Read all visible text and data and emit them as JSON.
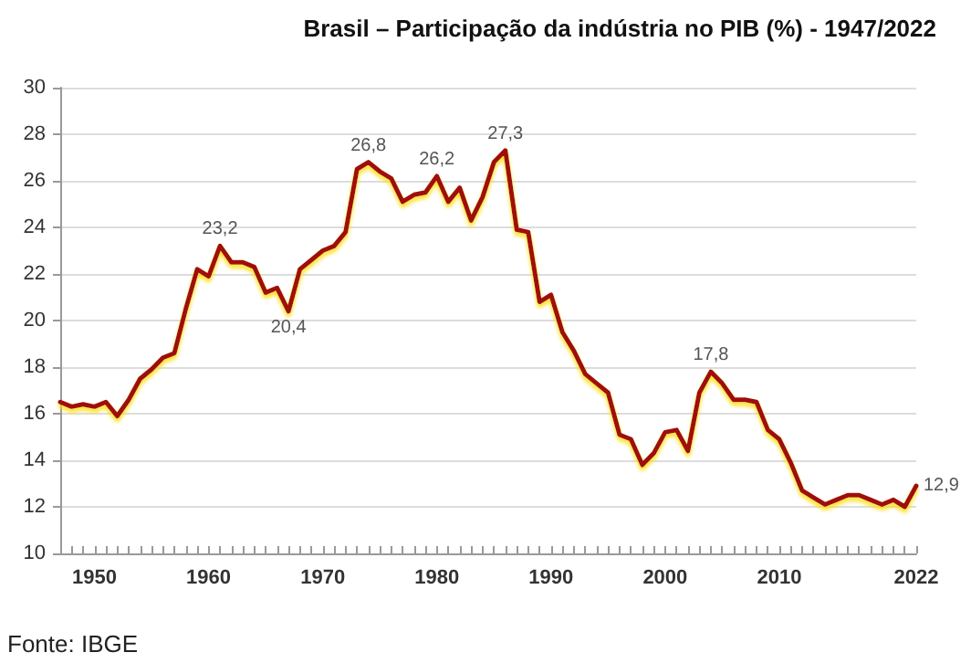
{
  "chart_data": {
    "type": "line",
    "title": "Brasil – Participação da indústria no PIB (%) - 1947/2022",
    "x": [
      1947,
      1948,
      1949,
      1950,
      1951,
      1952,
      1953,
      1954,
      1955,
      1956,
      1957,
      1958,
      1959,
      1960,
      1961,
      1962,
      1963,
      1964,
      1965,
      1966,
      1967,
      1968,
      1969,
      1970,
      1971,
      1972,
      1973,
      1974,
      1975,
      1976,
      1977,
      1978,
      1979,
      1980,
      1981,
      1982,
      1983,
      1984,
      1985,
      1986,
      1987,
      1988,
      1989,
      1990,
      1991,
      1992,
      1993,
      1994,
      1995,
      1996,
      1997,
      1998,
      1999,
      2000,
      2001,
      2002,
      2003,
      2004,
      2005,
      2006,
      2007,
      2008,
      2009,
      2010,
      2011,
      2012,
      2013,
      2014,
      2015,
      2016,
      2017,
      2018,
      2019,
      2020,
      2021,
      2022
    ],
    "series": [
      {
        "color": "#a01008",
        "values": [
          16.5,
          16.3,
          16.4,
          16.3,
          16.5,
          15.9,
          16.6,
          17.5,
          17.9,
          18.4,
          18.6,
          20.5,
          22.2,
          21.9,
          23.2,
          22.5,
          22.5,
          22.3,
          21.2,
          21.4,
          20.4,
          22.2,
          22.6,
          23.0,
          23.2,
          23.8,
          26.5,
          26.8,
          26.4,
          26.1,
          25.1,
          25.4,
          25.5,
          26.2,
          25.1,
          25.7,
          24.3,
          25.3,
          26.8,
          27.3,
          23.9,
          23.8,
          20.8,
          21.1,
          19.5,
          18.7,
          17.7,
          17.3,
          16.9,
          15.1,
          14.9,
          13.8,
          14.3,
          15.2,
          15.3,
          14.4,
          16.9,
          17.8,
          17.3,
          16.6,
          16.6,
          16.5,
          15.3,
          14.9,
          13.9,
          12.7,
          12.4,
          12.1,
          12.3,
          12.5,
          12.5,
          12.3,
          12.1,
          12.3,
          12.0,
          12.9
        ],
        "value_labels": [
          null,
          null,
          null,
          null,
          null,
          null,
          null,
          null,
          null,
          null,
          null,
          null,
          null,
          null,
          "23,2",
          null,
          null,
          null,
          null,
          null,
          "20,4",
          null,
          null,
          null,
          null,
          null,
          null,
          "26,8",
          null,
          null,
          null,
          null,
          null,
          "26,2",
          null,
          null,
          null,
          null,
          null,
          "27,3",
          null,
          null,
          null,
          null,
          null,
          null,
          null,
          null,
          null,
          null,
          null,
          null,
          null,
          null,
          null,
          null,
          null,
          "17,8",
          null,
          null,
          null,
          null,
          null,
          null,
          null,
          null,
          null,
          null,
          null,
          null,
          null,
          null,
          null,
          null,
          null,
          "12,9"
        ]
      }
    ],
    "xlim": [
      1947,
      2022
    ],
    "xticks": [
      {
        "value": 1947,
        "label": null
      },
      {
        "value": 1948,
        "label": null
      },
      {
        "value": 1949,
        "label": null
      },
      1950,
      {
        "value": 1951,
        "label": null
      },
      {
        "value": 1952,
        "label": null
      },
      {
        "value": 1953,
        "label": null
      },
      {
        "value": 1954,
        "label": null
      },
      {
        "value": 1955,
        "label": null
      },
      {
        "value": 1956,
        "label": null
      },
      {
        "value": 1957,
        "label": null
      },
      {
        "value": 1958,
        "label": null
      },
      {
        "value": 1959,
        "label": null
      },
      1960,
      {
        "value": 1961,
        "label": null
      },
      {
        "value": 1962,
        "label": null
      },
      {
        "value": 1963,
        "label": null
      },
      {
        "value": 1964,
        "label": null
      },
      {
        "value": 1965,
        "label": null
      },
      {
        "value": 1966,
        "label": null
      },
      {
        "value": 1967,
        "label": null
      },
      {
        "value": 1968,
        "label": null
      },
      {
        "value": 1969,
        "label": null
      },
      1970,
      {
        "value": 1971,
        "label": null
      },
      {
        "value": 1972,
        "label": null
      },
      {
        "value": 1973,
        "label": null
      },
      {
        "value": 1974,
        "label": null
      },
      {
        "value": 1975,
        "label": null
      },
      {
        "value": 1976,
        "label": null
      },
      {
        "value": 1977,
        "label": null
      },
      {
        "value": 1978,
        "label": null
      },
      {
        "value": 1979,
        "label": null
      },
      1980,
      {
        "value": 1981,
        "label": null
      },
      {
        "value": 1982,
        "label": null
      },
      {
        "value": 1983,
        "label": null
      },
      {
        "value": 1984,
        "label": null
      },
      {
        "value": 1985,
        "label": null
      },
      {
        "value": 1986,
        "label": null
      },
      {
        "value": 1987,
        "label": null
      },
      {
        "value": 1988,
        "label": null
      },
      {
        "value": 1989,
        "label": null
      },
      1990,
      {
        "value": 1991,
        "label": null
      },
      {
        "value": 1992,
        "label": null
      },
      {
        "value": 1993,
        "label": null
      },
      {
        "value": 1994,
        "label": null
      },
      {
        "value": 1995,
        "label": null
      },
      {
        "value": 1996,
        "label": null
      },
      {
        "value": 1997,
        "label": null
      },
      {
        "value": 1998,
        "label": null
      },
      {
        "value": 1999,
        "label": null
      },
      2000,
      {
        "value": 2001,
        "label": null
      },
      {
        "value": 2002,
        "label": null
      },
      {
        "value": 2003,
        "label": null
      },
      {
        "value": 2004,
        "label": null
      },
      {
        "value": 2005,
        "label": null
      },
      {
        "value": 2006,
        "label": null
      },
      {
        "value": 2007,
        "label": null
      },
      {
        "value": 2008,
        "label": null
      },
      {
        "value": 2009,
        "label": null
      },
      2010,
      {
        "value": 2011,
        "label": null
      },
      {
        "value": 2012,
        "label": null
      },
      {
        "value": 2013,
        "label": null
      },
      {
        "value": 2014,
        "label": null
      },
      {
        "value": 2015,
        "label": null
      },
      {
        "value": 2016,
        "label": null
      },
      {
        "value": 2017,
        "label": null
      },
      {
        "value": 2018,
        "label": null
      },
      {
        "value": 2019,
        "label": null
      },
      {
        "value": 2020,
        "label": null
      },
      {
        "value": 2021,
        "label": null
      },
      2022
    ],
    "ylim": [
      10,
      30
    ],
    "yticks": [
      10,
      12,
      14,
      16,
      18,
      20,
      22,
      24,
      26,
      28,
      30
    ],
    "grid": "y",
    "marker": "none",
    "line_style": "solid",
    "annotations": [
      "Fonte: IBGE"
    ]
  }
}
